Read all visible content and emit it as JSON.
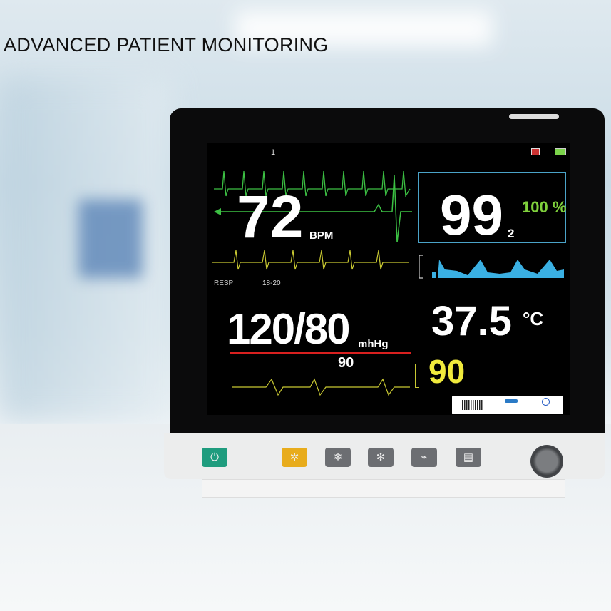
{
  "headline": "ADVANCED PATIENT MONITORING",
  "monitor": {
    "header": {
      "bed_no": "1"
    },
    "ecg": {
      "heart_rate": "72",
      "unit": "BPM",
      "color": "#3cc043"
    },
    "spo2": {
      "value": "99",
      "subscript": "2",
      "percent": "100 %",
      "color": "#35a8e0"
    },
    "resp": {
      "label": "RESP",
      "range": "18-20",
      "color": "#c8c832"
    },
    "nibp": {
      "value": "120/80",
      "unit": "mhHg",
      "mean": "90",
      "alarm_color": "#d9201f"
    },
    "temp": {
      "value": "37.5",
      "unit": "°C"
    },
    "pulse": {
      "value": "90",
      "color": "#f0ea3c"
    }
  },
  "buttons": [
    {
      "icon": "power-icon",
      "color": "#1f9c7e"
    },
    {
      "icon": "alarm-icon",
      "color": "#e8ac1c"
    },
    {
      "icon": "freeze-icon",
      "color": "#6c6e72"
    },
    {
      "icon": "nibp-icon",
      "color": "#6c6e72"
    },
    {
      "icon": "trend-icon",
      "color": "#6c6e72"
    },
    {
      "icon": "print-icon",
      "color": "#6c6e72"
    }
  ]
}
